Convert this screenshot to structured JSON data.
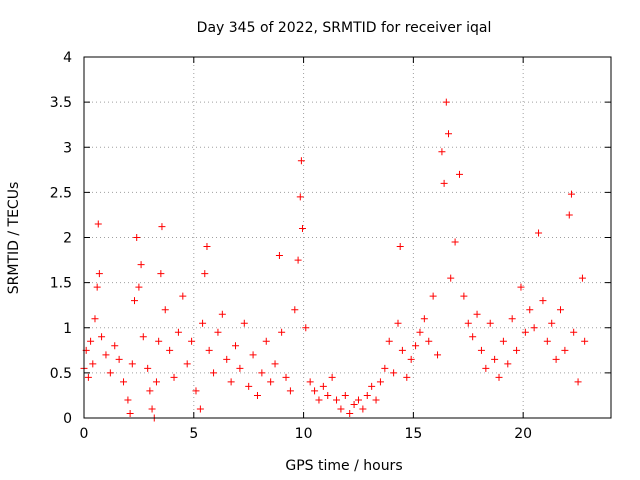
{
  "chart_data": {
    "type": "scatter",
    "title": "Day 345 of 2022, SRMTID for receiver iqal",
    "xlabel": "GPS time / hours",
    "ylabel": "SRMTID / TECUs",
    "xlim": [
      0,
      24
    ],
    "ylim": [
      0,
      4
    ],
    "xticks": [
      0,
      5,
      10,
      15,
      20
    ],
    "xtick_labels": [
      "0",
      "5",
      "10",
      "15",
      "20"
    ],
    "yticks": [
      0,
      0.5,
      1,
      1.5,
      2,
      2.5,
      3,
      3.5,
      4
    ],
    "ytick_labels": [
      "0",
      "0.5",
      "1",
      "1.5",
      "2",
      "2.5",
      "3",
      "3.5",
      "4"
    ],
    "grid": true,
    "marker": "+",
    "color": "#ff0000",
    "series": [
      {
        "name": "SRMTID",
        "points": [
          [
            0.0,
            0.55
          ],
          [
            0.1,
            0.75
          ],
          [
            0.2,
            0.45
          ],
          [
            0.3,
            0.85
          ],
          [
            0.4,
            0.6
          ],
          [
            0.5,
            1.1
          ],
          [
            0.6,
            1.45
          ],
          [
            0.65,
            2.15
          ],
          [
            0.7,
            1.6
          ],
          [
            0.8,
            0.9
          ],
          [
            1.0,
            0.7
          ],
          [
            1.2,
            0.5
          ],
          [
            1.4,
            0.8
          ],
          [
            1.6,
            0.65
          ],
          [
            1.8,
            0.4
          ],
          [
            2.0,
            0.2
          ],
          [
            2.1,
            0.05
          ],
          [
            2.2,
            0.6
          ],
          [
            2.3,
            1.3
          ],
          [
            2.4,
            2.0
          ],
          [
            2.5,
            1.45
          ],
          [
            2.6,
            1.7
          ],
          [
            2.7,
            0.9
          ],
          [
            2.9,
            0.55
          ],
          [
            3.0,
            0.3
          ],
          [
            3.1,
            0.1
          ],
          [
            3.2,
            0.0
          ],
          [
            3.3,
            0.4
          ],
          [
            3.4,
            0.85
          ],
          [
            3.5,
            1.6
          ],
          [
            3.55,
            2.12
          ],
          [
            3.7,
            1.2
          ],
          [
            3.9,
            0.75
          ],
          [
            4.1,
            0.45
          ],
          [
            4.3,
            0.95
          ],
          [
            4.5,
            1.35
          ],
          [
            4.7,
            0.6
          ],
          [
            4.9,
            0.85
          ],
          [
            5.1,
            0.3
          ],
          [
            5.3,
            0.1
          ],
          [
            5.4,
            1.05
          ],
          [
            5.5,
            1.6
          ],
          [
            5.6,
            1.9
          ],
          [
            5.7,
            0.75
          ],
          [
            5.9,
            0.5
          ],
          [
            6.1,
            0.95
          ],
          [
            6.3,
            1.15
          ],
          [
            6.5,
            0.65
          ],
          [
            6.7,
            0.4
          ],
          [
            6.9,
            0.8
          ],
          [
            7.1,
            0.55
          ],
          [
            7.3,
            1.05
          ],
          [
            7.5,
            0.35
          ],
          [
            7.7,
            0.7
          ],
          [
            7.9,
            0.25
          ],
          [
            8.1,
            0.5
          ],
          [
            8.3,
            0.85
          ],
          [
            8.5,
            0.4
          ],
          [
            8.7,
            0.6
          ],
          [
            8.9,
            1.8
          ],
          [
            9.0,
            0.95
          ],
          [
            9.2,
            0.45
          ],
          [
            9.4,
            0.3
          ],
          [
            9.6,
            1.2
          ],
          [
            9.75,
            1.75
          ],
          [
            9.85,
            2.45
          ],
          [
            9.9,
            2.85
          ],
          [
            9.95,
            2.1
          ],
          [
            10.1,
            1.0
          ],
          [
            10.3,
            0.4
          ],
          [
            10.5,
            0.3
          ],
          [
            10.7,
            0.2
          ],
          [
            10.9,
            0.35
          ],
          [
            11.1,
            0.25
          ],
          [
            11.3,
            0.45
          ],
          [
            11.5,
            0.2
          ],
          [
            11.7,
            0.1
          ],
          [
            11.9,
            0.25
          ],
          [
            12.1,
            0.05
          ],
          [
            12.3,
            0.15
          ],
          [
            12.5,
            0.2
          ],
          [
            12.7,
            0.1
          ],
          [
            12.9,
            0.25
          ],
          [
            13.1,
            0.35
          ],
          [
            13.3,
            0.2
          ],
          [
            13.5,
            0.4
          ],
          [
            13.7,
            0.55
          ],
          [
            13.9,
            0.85
          ],
          [
            14.1,
            0.5
          ],
          [
            14.3,
            1.05
          ],
          [
            14.4,
            1.9
          ],
          [
            14.5,
            0.75
          ],
          [
            14.7,
            0.45
          ],
          [
            14.9,
            0.65
          ],
          [
            15.1,
            0.8
          ],
          [
            15.3,
            0.95
          ],
          [
            15.5,
            1.1
          ],
          [
            15.7,
            0.85
          ],
          [
            15.9,
            1.35
          ],
          [
            16.1,
            0.7
          ],
          [
            16.3,
            2.95
          ],
          [
            16.4,
            2.6
          ],
          [
            16.5,
            3.5
          ],
          [
            16.6,
            3.15
          ],
          [
            16.7,
            1.55
          ],
          [
            16.9,
            1.95
          ],
          [
            17.1,
            2.7
          ],
          [
            17.3,
            1.35
          ],
          [
            17.5,
            1.05
          ],
          [
            17.7,
            0.9
          ],
          [
            17.9,
            1.15
          ],
          [
            18.1,
            0.75
          ],
          [
            18.3,
            0.55
          ],
          [
            18.5,
            1.05
          ],
          [
            18.7,
            0.65
          ],
          [
            18.9,
            0.45
          ],
          [
            19.1,
            0.85
          ],
          [
            19.3,
            0.6
          ],
          [
            19.5,
            1.1
          ],
          [
            19.7,
            0.75
          ],
          [
            19.9,
            1.45
          ],
          [
            20.1,
            0.95
          ],
          [
            20.3,
            1.2
          ],
          [
            20.5,
            1.0
          ],
          [
            20.7,
            2.05
          ],
          [
            20.9,
            1.3
          ],
          [
            21.1,
            0.85
          ],
          [
            21.3,
            1.05
          ],
          [
            21.5,
            0.65
          ],
          [
            21.7,
            1.2
          ],
          [
            21.9,
            0.75
          ],
          [
            22.1,
            2.25
          ],
          [
            22.2,
            2.48
          ],
          [
            22.3,
            0.95
          ],
          [
            22.5,
            0.4
          ],
          [
            22.7,
            1.55
          ],
          [
            22.8,
            0.85
          ]
        ]
      }
    ]
  }
}
